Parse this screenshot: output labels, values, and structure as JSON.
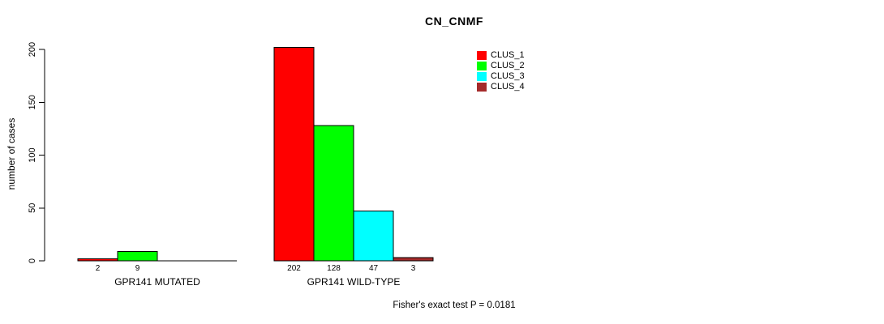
{
  "chart_data": {
    "type": "bar",
    "title": "CN_CNMF",
    "ylabel": "number of cases",
    "xlabel": "",
    "annotation": "Fisher's exact test P = 0.0181",
    "categories": [
      "GPR141 MUTATED",
      "GPR141 WILD-TYPE"
    ],
    "series": [
      {
        "name": "CLUS_1",
        "color": "#FF0000",
        "values": [
          2,
          202
        ]
      },
      {
        "name": "CLUS_2",
        "color": "#00FF00",
        "values": [
          9,
          128
        ]
      },
      {
        "name": "CLUS_3",
        "color": "#00FFFF",
        "values": [
          0,
          47
        ]
      },
      {
        "name": "CLUS_4",
        "color": "#A52A2A",
        "values": [
          0,
          3
        ]
      }
    ],
    "yticks": [
      0,
      50,
      100,
      150,
      200
    ],
    "ylim": [
      0,
      200
    ],
    "grid": false,
    "legend_position": "top-right",
    "axis_color": "#000000",
    "background_color": "#FFFFFF"
  }
}
